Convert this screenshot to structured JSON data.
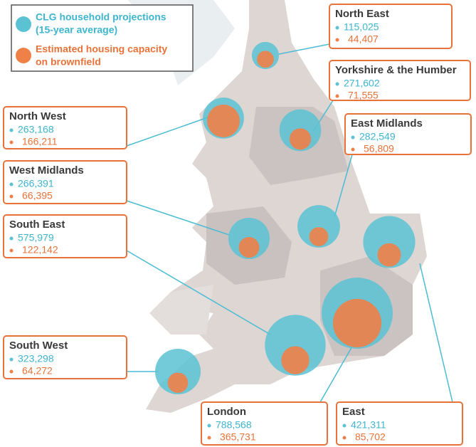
{
  "legend": [
    {
      "lines": [
        "CLG household projections",
        "(15-year average)"
      ],
      "color": "#5bc2d4"
    },
    {
      "lines": [
        "Estimated housing capacity",
        "on brownfield"
      ],
      "color": "#ef8048"
    }
  ],
  "regions": [
    {
      "name": "North East",
      "household": {
        "value": 115025,
        "label": "115,025"
      },
      "brownfield": {
        "value": 44407,
        "label": "44,407"
      }
    },
    {
      "name": "Yorkshire & the Humber",
      "household": {
        "value": 271602,
        "label": "271,602"
      },
      "brownfield": {
        "value": 71555,
        "label": "71,555"
      }
    },
    {
      "name": "East Midlands",
      "household": {
        "value": 282549,
        "label": "282,549"
      },
      "brownfield": {
        "value": 56809,
        "label": "56,809"
      }
    },
    {
      "name": "North West",
      "household": {
        "value": 263168,
        "label": "263,168"
      },
      "brownfield": {
        "value": 166211,
        "label": "166,211"
      }
    },
    {
      "name": "West Midlands",
      "household": {
        "value": 266391,
        "label": "266,391"
      },
      "brownfield": {
        "value": 66395,
        "label": "66,395"
      }
    },
    {
      "name": "South East",
      "household": {
        "value": 575979,
        "label": "575,979"
      },
      "brownfield": {
        "value": 122142,
        "label": "122,142"
      }
    },
    {
      "name": "South West",
      "household": {
        "value": 323298,
        "label": "323,298"
      },
      "brownfield": {
        "value": 64272,
        "label": "64,272"
      }
    },
    {
      "name": "London",
      "household": {
        "value": 788568,
        "label": "788,568"
      },
      "brownfield": {
        "value": 365731,
        "label": "365,731"
      }
    },
    {
      "name": "East",
      "household": {
        "value": 421311,
        "label": "421,311"
      },
      "brownfield": {
        "value": 85702,
        "label": "85,702"
      }
    }
  ]
}
